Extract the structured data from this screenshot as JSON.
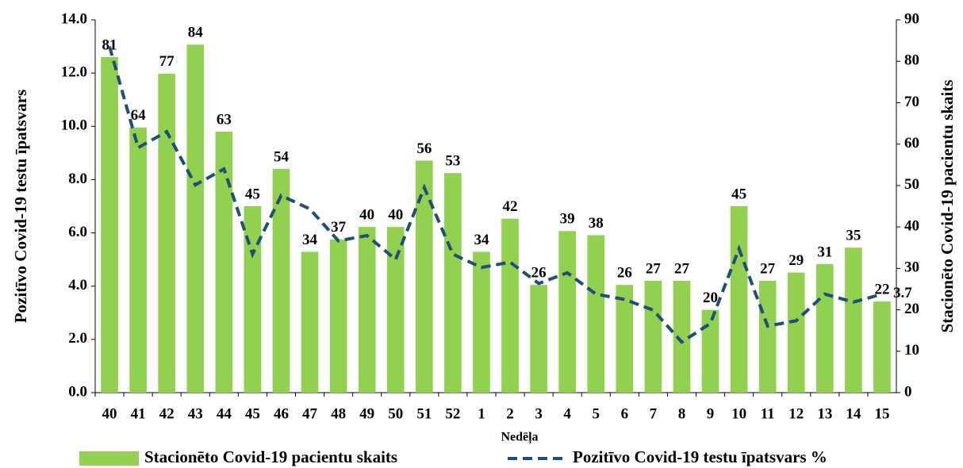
{
  "chart_data": {
    "type": "bar_line",
    "x_label": "Nedēļa",
    "y_label": "Pozitīvo Covid-19 testu īpatsvars",
    "y2_label": "Stacionēto Covid-19 pacientu skaits",
    "categories": [
      "40",
      "41",
      "42",
      "43",
      "44",
      "45",
      "46",
      "47",
      "48",
      "49",
      "50",
      "51",
      "52",
      "1",
      "2",
      "3",
      "4",
      "5",
      "6",
      "7",
      "8",
      "9",
      "10",
      "11",
      "12",
      "13",
      "14",
      "15"
    ],
    "series": [
      {
        "name": "Stacionēto Covid-19 pacientu skaits",
        "type": "bar",
        "axis": "y2",
        "color": "#92d050",
        "data_labels": true,
        "values": [
          81,
          64,
          77,
          84,
          63,
          45,
          54,
          34,
          37,
          40,
          40,
          56,
          53,
          34,
          42,
          26,
          39,
          38,
          26,
          27,
          27,
          20,
          45,
          27,
          29,
          31,
          35,
          22
        ]
      },
      {
        "name": "Pozitīvo Covid-19 testu īpatsvars %",
        "type": "line",
        "axis": "y",
        "color": "#1f4e79",
        "dashed": true,
        "values": [
          13.0,
          9.2,
          9.8,
          7.8,
          8.4,
          5.2,
          7.4,
          6.9,
          5.7,
          5.9,
          5.0,
          7.7,
          5.2,
          4.7,
          4.9,
          4.1,
          4.5,
          3.7,
          3.5,
          3.1,
          1.9,
          2.6,
          5.4,
          2.5,
          2.7,
          3.7,
          3.4,
          3.7
        ],
        "value_labels": [
          null,
          null,
          null,
          null,
          null,
          null,
          null,
          null,
          null,
          null,
          null,
          null,
          null,
          null,
          null,
          null,
          null,
          null,
          null,
          null,
          null,
          null,
          null,
          null,
          null,
          null,
          null,
          "3.7"
        ]
      }
    ],
    "ylim": [
      0,
      14
    ],
    "yticks": [
      {
        "value": 0,
        "label": "0.0"
      },
      {
        "value": 2,
        "label": "2.0"
      },
      {
        "value": 4,
        "label": "4.0"
      },
      {
        "value": 6,
        "label": "6.0"
      },
      {
        "value": 8,
        "label": "8.0"
      },
      {
        "value": 10,
        "label": "10.0"
      },
      {
        "value": 12,
        "label": "12.0"
      },
      {
        "value": 14,
        "label": "14.0"
      }
    ],
    "y2lim": [
      0,
      90
    ],
    "y2ticks": [
      0,
      10,
      20,
      30,
      40,
      50,
      60,
      70,
      80,
      90
    ],
    "grid": false,
    "legend": "bottom"
  }
}
